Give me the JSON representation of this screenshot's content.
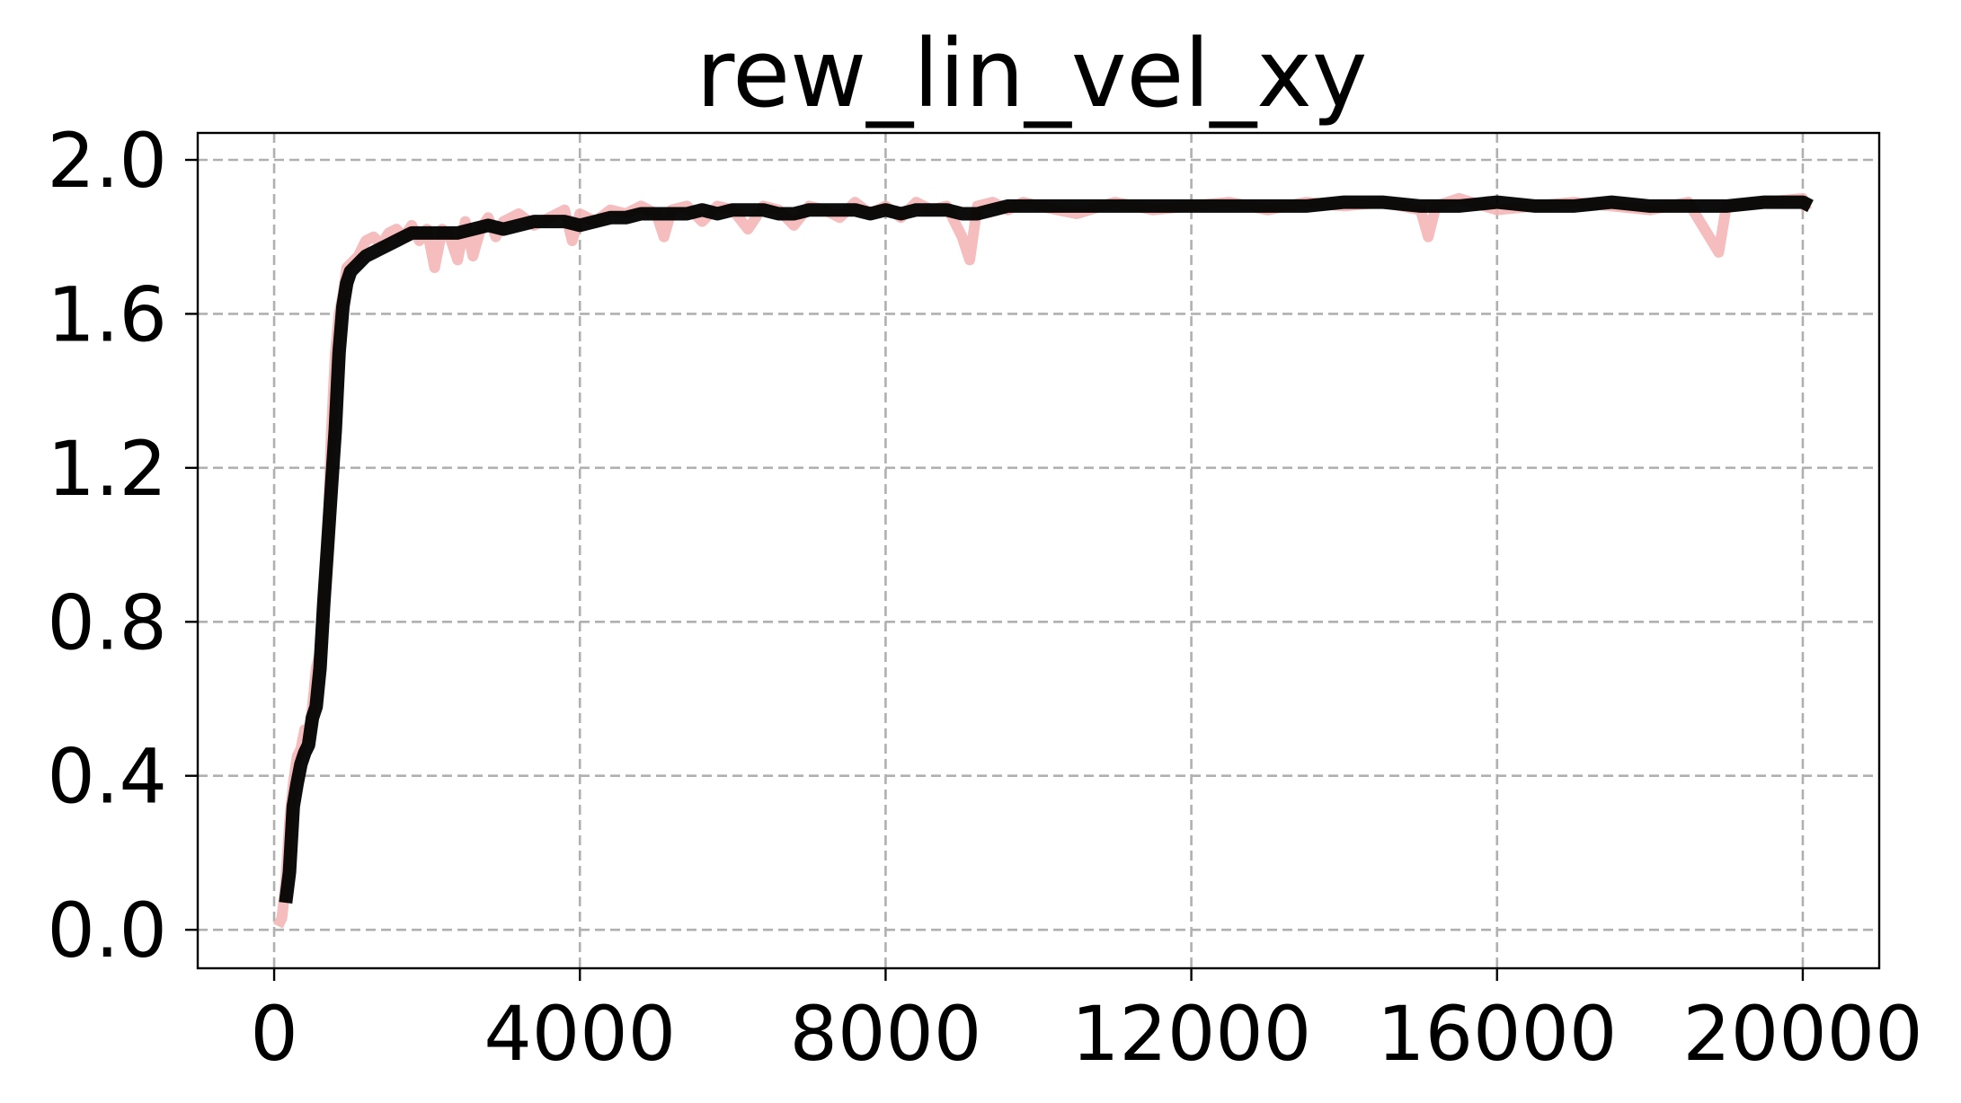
{
  "chart_data": {
    "type": "line",
    "title": "rew_lin_vel_xy",
    "xlabel": "",
    "ylabel": "",
    "xlim": [
      -1000,
      21000
    ],
    "ylim": [
      -0.1,
      2.07
    ],
    "xticks": [
      0,
      4000,
      8000,
      12000,
      16000,
      20000
    ],
    "xtick_labels": [
      "0",
      "4000",
      "8000",
      "12000",
      "16000",
      "20000"
    ],
    "yticks": [
      0.0,
      0.4,
      0.8,
      1.2,
      1.6,
      2.0
    ],
    "ytick_labels": [
      "0.0",
      "0.4",
      "0.8",
      "1.2",
      "1.6",
      "2.0"
    ],
    "grid": true,
    "series": [
      {
        "color": "#f4b6b6",
        "role": "raw",
        "x": [
          50,
          100,
          150,
          200,
          250,
          300,
          350,
          400,
          450,
          500,
          550,
          600,
          650,
          700,
          750,
          800,
          850,
          900,
          950,
          1000,
          1050,
          1100,
          1150,
          1200,
          1300,
          1400,
          1500,
          1600,
          1700,
          1800,
          1900,
          2000,
          2100,
          2200,
          2300,
          2400,
          2500,
          2600,
          2700,
          2800,
          2900,
          3000,
          3200,
          3400,
          3600,
          3800,
          3900,
          4000,
          4200,
          4400,
          4600,
          4800,
          5000,
          5100,
          5200,
          5400,
          5600,
          5800,
          6000,
          6200,
          6400,
          6600,
          6800,
          7000,
          7200,
          7400,
          7600,
          7800,
          8000,
          8200,
          8400,
          8600,
          8800,
          9000,
          9100,
          9200,
          9400,
          9600,
          9800,
          10000,
          10500,
          11000,
          11500,
          12000,
          12500,
          13000,
          13500,
          14000,
          14500,
          15000,
          15100,
          15200,
          15500,
          16000,
          16500,
          17000,
          17500,
          18000,
          18500,
          18900,
          19000,
          19500,
          20000,
          20050
        ],
        "y": [
          0.01,
          0.03,
          0.12,
          0.28,
          0.38,
          0.45,
          0.47,
          0.52,
          0.5,
          0.58,
          0.68,
          0.72,
          0.85,
          1.02,
          1.3,
          1.5,
          1.6,
          1.65,
          1.72,
          1.73,
          1.74,
          1.75,
          1.77,
          1.79,
          1.8,
          1.78,
          1.81,
          1.82,
          1.8,
          1.83,
          1.79,
          1.82,
          1.72,
          1.82,
          1.8,
          1.74,
          1.84,
          1.75,
          1.82,
          1.85,
          1.8,
          1.84,
          1.86,
          1.83,
          1.85,
          1.87,
          1.79,
          1.86,
          1.84,
          1.87,
          1.86,
          1.88,
          1.86,
          1.8,
          1.87,
          1.88,
          1.84,
          1.88,
          1.87,
          1.82,
          1.88,
          1.87,
          1.83,
          1.88,
          1.87,
          1.85,
          1.89,
          1.86,
          1.88,
          1.85,
          1.89,
          1.87,
          1.88,
          1.8,
          1.74,
          1.88,
          1.89,
          1.87,
          1.89,
          1.88,
          1.86,
          1.89,
          1.87,
          1.88,
          1.89,
          1.87,
          1.89,
          1.88,
          1.89,
          1.87,
          1.8,
          1.88,
          1.9,
          1.87,
          1.88,
          1.89,
          1.88,
          1.87,
          1.89,
          1.76,
          1.88,
          1.89,
          1.9,
          1.87
        ]
      },
      {
        "color": "#000000",
        "role": "smoothed",
        "x": [
          150,
          200,
          250,
          300,
          350,
          400,
          450,
          500,
          550,
          600,
          650,
          700,
          750,
          800,
          850,
          900,
          950,
          1000,
          1050,
          1100,
          1150,
          1200,
          1300,
          1400,
          1500,
          1600,
          1700,
          1800,
          2000,
          2200,
          2400,
          2600,
          2800,
          3000,
          3200,
          3400,
          3600,
          3800,
          4000,
          4200,
          4400,
          4600,
          4800,
          5000,
          5200,
          5400,
          5600,
          5800,
          6000,
          6200,
          6400,
          6600,
          6800,
          7000,
          7200,
          7400,
          7600,
          7800,
          8000,
          8200,
          8400,
          8600,
          8800,
          9000,
          9200,
          9400,
          9600,
          9800,
          10000,
          10500,
          11000,
          11500,
          12000,
          12500,
          13000,
          13500,
          14000,
          14500,
          15000,
          15500,
          16000,
          16500,
          17000,
          17500,
          18000,
          18500,
          19000,
          19500,
          20000,
          20100
        ],
        "y": [
          0.07,
          0.15,
          0.32,
          0.38,
          0.43,
          0.46,
          0.48,
          0.55,
          0.58,
          0.68,
          0.85,
          1.0,
          1.15,
          1.3,
          1.5,
          1.62,
          1.68,
          1.71,
          1.72,
          1.73,
          1.74,
          1.75,
          1.76,
          1.77,
          1.78,
          1.79,
          1.8,
          1.81,
          1.81,
          1.81,
          1.81,
          1.82,
          1.83,
          1.82,
          1.83,
          1.84,
          1.84,
          1.84,
          1.83,
          1.84,
          1.85,
          1.85,
          1.86,
          1.86,
          1.86,
          1.86,
          1.87,
          1.86,
          1.87,
          1.87,
          1.87,
          1.86,
          1.86,
          1.87,
          1.87,
          1.87,
          1.87,
          1.86,
          1.87,
          1.86,
          1.87,
          1.87,
          1.87,
          1.86,
          1.86,
          1.87,
          1.88,
          1.88,
          1.88,
          1.88,
          1.88,
          1.88,
          1.88,
          1.88,
          1.88,
          1.88,
          1.89,
          1.89,
          1.88,
          1.88,
          1.89,
          1.88,
          1.88,
          1.89,
          1.88,
          1.88,
          1.88,
          1.89,
          1.89,
          1.88
        ]
      }
    ]
  }
}
